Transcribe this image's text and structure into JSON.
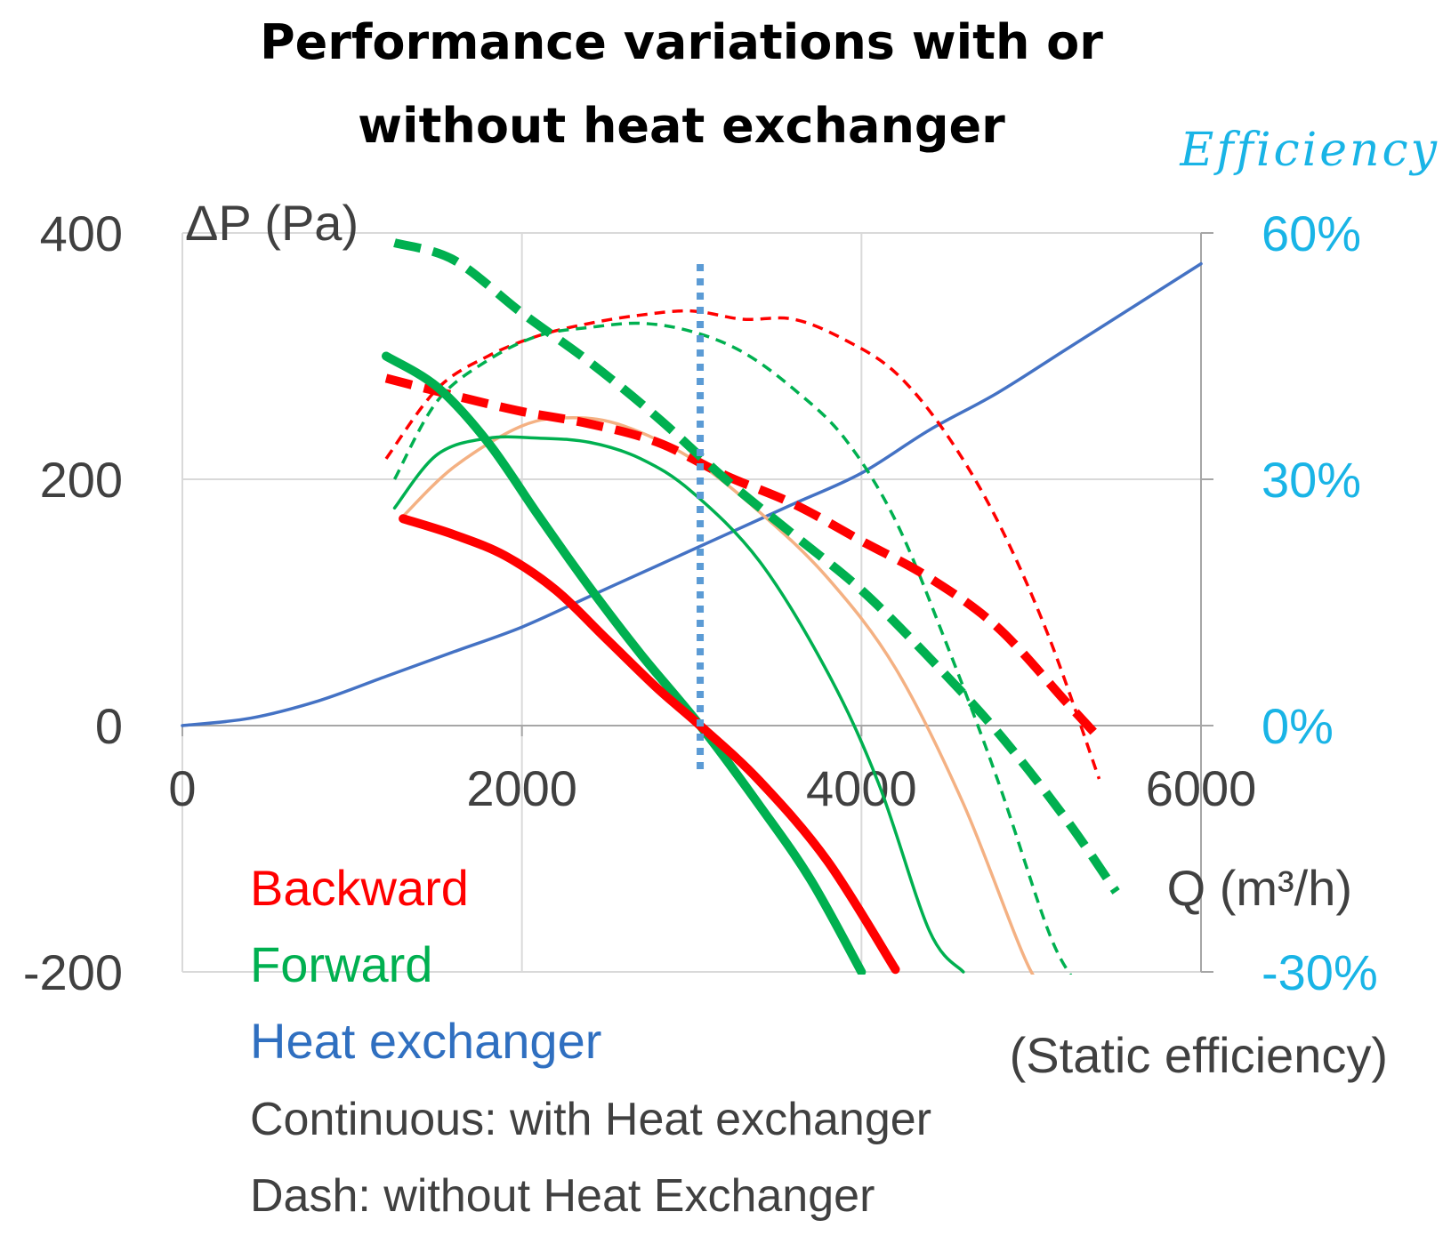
{
  "chart_data": {
    "type": "line",
    "title": [
      "Performance variations with or",
      "without heat exchanger"
    ],
    "xlabel": "Q (m³/h)",
    "ylabel": "ΔP (Pa)",
    "y2label": "Efficiency",
    "y2note": "(Static efficiency)",
    "xlim": [
      0,
      6000
    ],
    "ylim": [
      -200,
      400
    ],
    "y2lim": [
      -30,
      60
    ],
    "xticks": [
      "0",
      "2000",
      "4000",
      "6000"
    ],
    "yticks": [
      "400",
      "200",
      "0",
      "-200"
    ],
    "y2ticks": [
      "60%",
      "30%",
      "0%",
      "-30%"
    ],
    "operating_point_q": 3050,
    "legend": [
      {
        "label": "Backward",
        "color": "#ff0000"
      },
      {
        "label": "Forward",
        "color": "#00b050"
      },
      {
        "label": "Heat exchanger",
        "color": "#2f6fc0"
      }
    ],
    "notes": [
      "Continuous: with Heat exchanger",
      "Dash: without Heat Exchanger"
    ],
    "series": [
      {
        "name": "Heat exchanger pressure",
        "axis": "left",
        "color": "#4472c4",
        "style": "solid",
        "weight": "thin",
        "x": [
          0,
          400,
          800,
          1200,
          1600,
          2000,
          2400,
          2800,
          3200,
          3600,
          4000,
          4400,
          4800,
          5200,
          5600,
          6000
        ],
        "y": [
          0,
          6,
          20,
          40,
          60,
          80,
          105,
          130,
          155,
          180,
          205,
          240,
          270,
          305,
          340,
          375
        ]
      },
      {
        "name": "Backward pressure (with HX)",
        "axis": "left",
        "color": "#ff0000",
        "style": "solid",
        "weight": "thick",
        "x": [
          1300,
          1600,
          1900,
          2200,
          2500,
          2800,
          3050,
          3400,
          3800,
          4200
        ],
        "y": [
          168,
          155,
          138,
          110,
          70,
          30,
          0,
          -45,
          -110,
          -198
        ]
      },
      {
        "name": "Forward pressure (with HX)",
        "axis": "left",
        "color": "#00b050",
        "style": "solid",
        "weight": "thick",
        "x": [
          1200,
          1500,
          1800,
          2100,
          2400,
          2700,
          3050,
          3400,
          3700,
          4000
        ],
        "y": [
          300,
          275,
          230,
          170,
          112,
          58,
          0,
          -65,
          -125,
          -200
        ]
      },
      {
        "name": "Backward pressure (without HX)",
        "axis": "left",
        "color": "#ff0000",
        "style": "dash",
        "weight": "thick",
        "x": [
          1200,
          1600,
          2000,
          2400,
          2800,
          3200,
          3600,
          4000,
          4400,
          4800,
          5200,
          5400
        ],
        "y": [
          282,
          268,
          255,
          245,
          230,
          203,
          180,
          150,
          120,
          80,
          20,
          -10
        ]
      },
      {
        "name": "Forward pressure (without HX)",
        "axis": "left",
        "color": "#00b050",
        "style": "dash",
        "weight": "thick",
        "x": [
          1250,
          1600,
          2000,
          2400,
          2800,
          3200,
          3600,
          4000,
          4400,
          4800,
          5200,
          5500
        ],
        "y": [
          392,
          378,
          335,
          295,
          250,
          200,
          155,
          110,
          55,
          -5,
          -75,
          -135
        ]
      },
      {
        "name": "Backward efficiency (with HX)",
        "axis": "right",
        "color": "#f4b183",
        "style": "solid",
        "weight": "thin",
        "x": [
          1300,
          1600,
          2000,
          2300,
          2600,
          3000,
          3400,
          3800,
          4200,
          4600,
          5000,
          5150
        ],
        "y": [
          25.5,
          31.5,
          36.5,
          37.5,
          36.5,
          32.5,
          26,
          18,
          7,
          -9.5,
          -30,
          -31
        ]
      },
      {
        "name": "Forward efficiency (with HX)",
        "axis": "right",
        "color": "#00b050",
        "style": "solid",
        "weight": "thin",
        "x": [
          1250,
          1500,
          1800,
          2100,
          2400,
          2700,
          3000,
          3400,
          3800,
          4100,
          4400,
          4600
        ],
        "y": [
          26.5,
          33,
          35,
          35,
          34.5,
          32.5,
          28.5,
          20,
          6.5,
          -7,
          -25,
          -30
        ]
      },
      {
        "name": "Backward efficiency (without HX)",
        "axis": "right",
        "color": "#ff0000",
        "style": "dash",
        "weight": "thin",
        "x": [
          1200,
          1500,
          1800,
          2100,
          2400,
          2700,
          3000,
          3300,
          3600,
          3900,
          4200,
          4500,
          4800,
          5100,
          5400
        ],
        "y": [
          32.5,
          41,
          45,
          47.5,
          49,
          50,
          50.5,
          49.5,
          49.5,
          47,
          43,
          35.5,
          25,
          11,
          -6.5
        ]
      },
      {
        "name": "Forward efficiency (without HX)",
        "axis": "right",
        "color": "#00b050",
        "style": "dash",
        "weight": "thin",
        "x": [
          1250,
          1500,
          1800,
          2100,
          2400,
          2700,
          3000,
          3300,
          3600,
          3900,
          4200,
          4500,
          4800,
          5100,
          5250
        ],
        "y": [
          30,
          39.5,
          44.5,
          47.5,
          48.5,
          49,
          48,
          45.5,
          41,
          35,
          25,
          10,
          -6.5,
          -25,
          -31
        ]
      }
    ]
  }
}
